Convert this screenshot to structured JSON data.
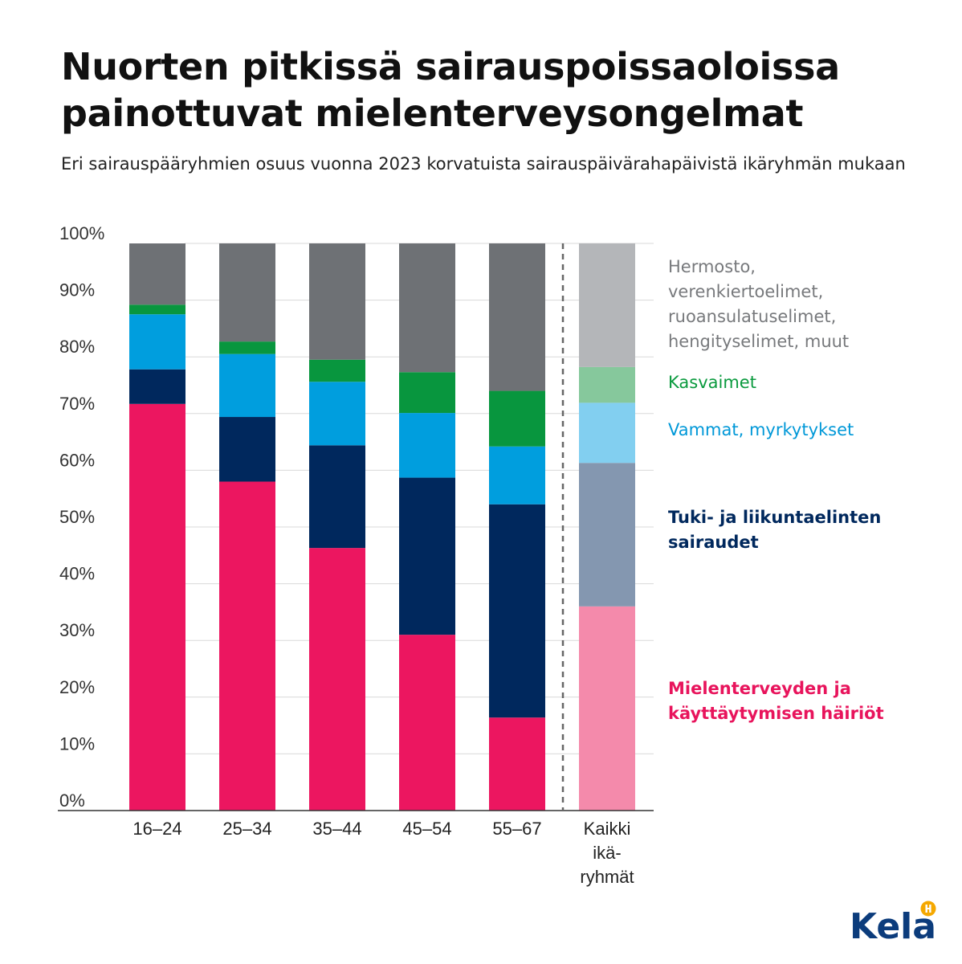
{
  "header": {
    "title": "Nuorten pitkissä sairauspoissaoloissa painottuvat mielenterveysongelmat",
    "subtitle": "Eri sairauspääryhmien osuus vuonna 2023 korvatuista sairauspäivärahapäivistä ikäryhmän mukaan"
  },
  "chart_data": {
    "type": "bar",
    "stacked": true,
    "categories": [
      "16–24",
      "25–34",
      "35–44",
      "45–54",
      "55–67",
      "Kaikki ikäryhmät"
    ],
    "category_lines": [
      [
        "16–24"
      ],
      [
        "25–34"
      ],
      [
        "35–44"
      ],
      [
        "45–54"
      ],
      [
        "55–67"
      ],
      [
        "Kaikki",
        "ikä-",
        "ryhmät"
      ]
    ],
    "y_ticks": [
      "0%",
      "10%",
      "20%",
      "30%",
      "40%",
      "50%",
      "60%",
      "70%",
      "80%",
      "90%",
      "100%"
    ],
    "ylim": [
      0,
      100
    ],
    "grid": true,
    "separator_before_last": true,
    "series": [
      {
        "name": "Mielenterveyden ja käyttäytymisen häiriöt",
        "values": [
          71.7,
          58.0,
          46.3,
          31.0,
          16.4,
          36.0
        ],
        "color": "#ec1660",
        "color_total": "#f48aab"
      },
      {
        "name": "Tuki- ja liikuntaelinten sairaudet",
        "values": [
          6.1,
          11.4,
          18.1,
          27.7,
          37.6,
          25.3
        ],
        "color": "#00285d",
        "color_total": "#8497b0"
      },
      {
        "name": "Vammat, myrkytykset",
        "values": [
          9.7,
          11.1,
          11.2,
          11.4,
          10.2,
          10.6
        ],
        "color": "#009ede",
        "color_total": "#82cff0"
      },
      {
        "name": "Kasvaimet",
        "values": [
          1.7,
          2.2,
          3.9,
          7.2,
          9.8,
          6.3
        ],
        "color": "#08963e",
        "color_total": "#86c89c"
      },
      {
        "name": "Hermosto, verenkiertoelimet, ruoansulatuselimet, hengityselimet, muut",
        "values": [
          10.8,
          17.3,
          20.5,
          22.7,
          26.0,
          21.8
        ],
        "color": "#6e7175",
        "color_total": "#b4b6b9"
      }
    ]
  },
  "legend": [
    {
      "lines": [
        "Hermosto,",
        "verenkiertoelimet,",
        "ruoansulatuselimet,",
        "hengityselimet, muut"
      ],
      "color": "#77797c",
      "bold": false
    },
    {
      "lines": [
        "Kasvaimet"
      ],
      "color": "#0a9a3e",
      "bold": false
    },
    {
      "lines": [
        "Vammat, myrkytykset"
      ],
      "color": "#0098d8",
      "bold": false
    },
    {
      "lines": [
        "Tuki- ja liikuntaelinten",
        "sairaudet"
      ],
      "color": "#00285d",
      "bold": true
    },
    {
      "lines": [
        "Mielenterveyden ja",
        "käyttäytymisen häiriöt"
      ],
      "color": "#e8145c",
      "bold": true
    }
  ],
  "logo": {
    "text": "Kela",
    "color": "#0c3c7c",
    "accent": "#f5a800"
  }
}
